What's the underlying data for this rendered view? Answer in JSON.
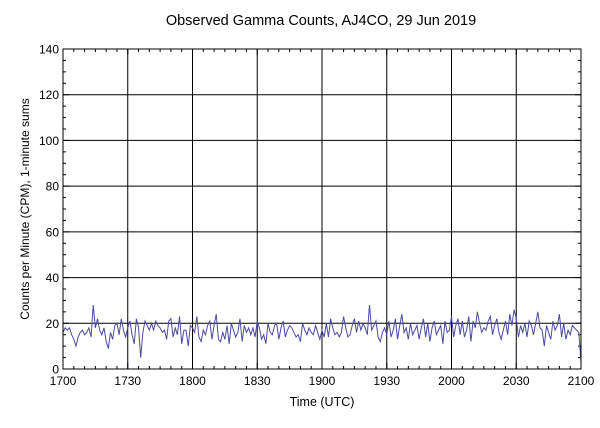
{
  "chart_data": {
    "type": "line",
    "title": "Observed Gamma Counts, AJ4CO, 29 Jun 2019",
    "xlabel": "Time (UTC)",
    "ylabel": "Counts per Minute (CPM), 1-minute sums",
    "x_ticks": [
      "1700",
      "1730",
      "1800",
      "1830",
      "1900",
      "1930",
      "2000",
      "2030",
      "2100"
    ],
    "x_range_minutes": [
      0,
      240
    ],
    "y_ticks": [
      "0",
      "20",
      "40",
      "60",
      "80",
      "100",
      "120",
      "140"
    ],
    "ylim": [
      0,
      140
    ],
    "grid": true,
    "line_color": "#4a4aa0",
    "series": [
      {
        "values": [
          16,
          18,
          17,
          18,
          15,
          13,
          10,
          14,
          16,
          17,
          15,
          16,
          18,
          14,
          28,
          18,
          22,
          17,
          15,
          18,
          12,
          9,
          16,
          13,
          19,
          20,
          15,
          22,
          17,
          14,
          18,
          21,
          15,
          11,
          22,
          18,
          5,
          16,
          21,
          19,
          17,
          20,
          17,
          21,
          19,
          18,
          16,
          17,
          13,
          21,
          22,
          14,
          18,
          15,
          23,
          11,
          17,
          17,
          10,
          19,
          18,
          16,
          23,
          14,
          12,
          17,
          15,
          19,
          21,
          13,
          19,
          24,
          13,
          12,
          16,
          13,
          19,
          11,
          20,
          17,
          14,
          16,
          22,
          12,
          19,
          16,
          18,
          15,
          18,
          14,
          21,
          18,
          13,
          15,
          11,
          20,
          16,
          15,
          19,
          20,
          13,
          18,
          21,
          14,
          17,
          19,
          18,
          16,
          14,
          15,
          12,
          20,
          17,
          15,
          18,
          16,
          15,
          19,
          16,
          13,
          17,
          14,
          20,
          14,
          22,
          18,
          15,
          16,
          14,
          16,
          23,
          18,
          14,
          15,
          19,
          22,
          16,
          21,
          17,
          20,
          18,
          15,
          28,
          17,
          19,
          21,
          14,
          12,
          16,
          18,
          15,
          21,
          14,
          17,
          22,
          13,
          19,
          24,
          16,
          18,
          13,
          20,
          15,
          17,
          19,
          13,
          18,
          22,
          14,
          20,
          12,
          18,
          21,
          15,
          17,
          19,
          11,
          21,
          16,
          17,
          23,
          14,
          19,
          22,
          15,
          21,
          14,
          17,
          23,
          12,
          21,
          18,
          25,
          20,
          16,
          18,
          17,
          21,
          23,
          15,
          19,
          22,
          16,
          13,
          17,
          21,
          15,
          24,
          19,
          26,
          22,
          14,
          19,
          16,
          20,
          14,
          21,
          19,
          15,
          20,
          25,
          18,
          17,
          10,
          19,
          16,
          13,
          21,
          17,
          19,
          24,
          14,
          20,
          13,
          17,
          15,
          19,
          18,
          17,
          16,
          3
        ]
      }
    ]
  }
}
